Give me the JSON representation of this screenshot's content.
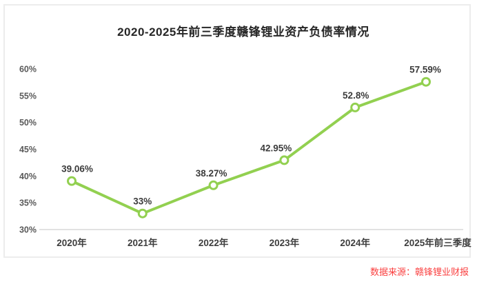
{
  "page": {
    "title": "2020-2025年前三季度赣锋锂业资产负债率情况",
    "source_note": "数据来源：赣锋锂业财报"
  },
  "chart_data": {
    "type": "line",
    "title": "2020-2025年前三季度赣锋锂业资产负债率情况",
    "categories": [
      "2020年",
      "2021年",
      "2022年",
      "2023年",
      "2024年",
      "2025年前三季度"
    ],
    "values": [
      39.06,
      33,
      38.27,
      42.95,
      52.8,
      57.59
    ],
    "data_labels": [
      "39.06%",
      "33%",
      "38.27%",
      "42.95%",
      "52.8%",
      "57.59%"
    ],
    "y_ticks": [
      "30%",
      "35%",
      "40%",
      "45%",
      "50%",
      "55%",
      "60%"
    ],
    "y_tick_values": [
      30,
      35,
      40,
      45,
      50,
      55,
      60
    ],
    "ylim": [
      30,
      60
    ],
    "xlabel": "",
    "ylabel": "",
    "grid": false,
    "legend_position": "none",
    "marker_style": "open-circle",
    "colors": {
      "line": "#92d050",
      "marker_fill": "#ffffff",
      "marker_stroke": "#92d050",
      "title_text": "#262626",
      "axis_line": "#d9d9d9",
      "source_text": "#fa3e3e"
    }
  }
}
